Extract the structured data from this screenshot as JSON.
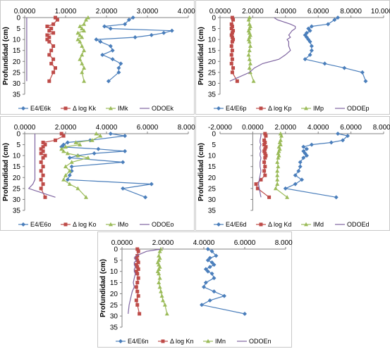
{
  "colors": {
    "E4E6": "#4a7ebb",
    "dlogK": "#be4b48",
    "IM": "#9bbb59",
    "ODOE": "#7e64a0"
  },
  "chart_data": [
    {
      "type": "line",
      "title": "",
      "xlabel": "",
      "ylabel": "Profundidad (cm)",
      "xlim": [
        0,
        4
      ],
      "xticks": [
        "0.0000",
        "1.0000",
        "2.0000",
        "3.0000",
        "4.0000"
      ],
      "ylim": [
        0,
        35
      ],
      "yticks": [
        "0",
        "5",
        "10",
        "15",
        "20",
        "25",
        "30",
        "35"
      ],
      "depth": [
        0,
        1,
        3,
        4,
        5,
        6,
        7,
        8,
        9,
        10,
        11,
        13,
        15,
        17,
        19,
        21,
        23,
        25,
        29
      ],
      "series": [
        {
          "name": "E4/E6k",
          "values": [
            2.65,
            2.55,
            2.45,
            1.95,
            2.1,
            3.6,
            3.4,
            3.1,
            2.7,
            1.75,
            1.85,
            2.1,
            2.15,
            1.9,
            2.15,
            2.35,
            2.3,
            2.3,
            2.05
          ]
        },
        {
          "name": "Δ log Kk",
          "values": [
            0.75,
            0.8,
            0.7,
            0.55,
            0.65,
            0.6,
            0.7,
            0.55,
            0.6,
            0.55,
            0.6,
            0.7,
            0.65,
            0.6,
            0.7,
            0.65,
            0.75,
            0.7,
            0.6
          ]
        },
        {
          "name": "IMk",
          "values": [
            1.55,
            1.5,
            1.45,
            1.35,
            1.4,
            1.45,
            1.3,
            1.35,
            1.4,
            1.3,
            1.35,
            1.4,
            1.45,
            1.4,
            1.35,
            1.4,
            1.45,
            1.4,
            1.45
          ]
        },
        {
          "name": "ODOEk",
          "values": [
            0.05,
            0.05,
            0.05,
            0.05,
            0.05,
            0.05,
            0.05,
            0.05,
            0.05,
            0.05,
            0.05,
            0.05,
            0.05,
            0.05,
            0.05,
            0.05,
            0.05,
            0.05,
            0.05
          ]
        }
      ]
    },
    {
      "type": "line",
      "title": "",
      "xlabel": "",
      "ylabel": "Profundidad (cm)",
      "xlim": [
        0,
        10
      ],
      "xticks": [
        "0.0000",
        "2.0000",
        "4.0000",
        "6.0000",
        "8.0000",
        "10.0000"
      ],
      "ylim": [
        0,
        35
      ],
      "yticks": [
        "0",
        "5",
        "10",
        "15",
        "20",
        "25",
        "30",
        "35"
      ],
      "depth": [
        0,
        1,
        3,
        4,
        5,
        6,
        7,
        8,
        9,
        10,
        11,
        13,
        15,
        17,
        19,
        21,
        23,
        25,
        29
      ],
      "series": [
        {
          "name": "E4/E6p",
          "values": [
            7.2,
            7.0,
            6.6,
            5.6,
            5.4,
            5.5,
            5.3,
            5.2,
            5.3,
            5.4,
            5.5,
            5.6,
            5.6,
            5.5,
            5.2,
            6.4,
            7.6,
            8.7,
            8.9
          ]
        },
        {
          "name": "Δ log Kp",
          "values": [
            0.75,
            0.8,
            0.7,
            0.75,
            0.7,
            0.8,
            0.75,
            0.7,
            0.75,
            0.8,
            0.75,
            0.7,
            0.75,
            0.7,
            0.75,
            0.7,
            0.8,
            0.75,
            1.05
          ]
        },
        {
          "name": "IMp",
          "values": [
            1.8,
            1.75,
            1.8,
            1.85,
            1.8,
            1.75,
            1.8,
            1.85,
            1.8,
            1.75,
            1.8,
            1.85,
            1.8,
            1.75,
            1.8,
            1.85,
            1.8,
            1.85,
            2.05
          ]
        },
        {
          "name": "ODOEp",
          "values": [
            3.3,
            3.5,
            4.3,
            4.6,
            4.6,
            4.4,
            4.3,
            4.2,
            4.3,
            4.1,
            4.2,
            4.2,
            4.3,
            4.0,
            3.6,
            2.6,
            2.1,
            1.8,
            0.6
          ]
        }
      ]
    },
    {
      "type": "line",
      "title": "",
      "xlabel": "",
      "ylabel": "Profundidad (cm)",
      "xlim": [
        0,
        8
      ],
      "xticks": [
        "0.0000",
        "2.0000",
        "4.0000",
        "6.0000",
        "8.0000"
      ],
      "ylim": [
        0,
        35
      ],
      "yticks": [
        "0",
        "5",
        "10",
        "15",
        "20",
        "25",
        "30",
        "35"
      ],
      "depth": [
        0,
        1,
        3,
        4,
        5,
        6,
        7,
        8,
        9,
        10,
        11,
        13,
        15,
        17,
        19,
        21,
        23,
        25,
        29
      ],
      "series": [
        {
          "name": "E4/E6o",
          "values": [
            4.2,
            4.9,
            3.2,
            2.1,
            1.9,
            1.8,
            3.6,
            4.9,
            3.4,
            2.6,
            2.2,
            4.8,
            2.3,
            2.3,
            2.2,
            2.1,
            6.2,
            4.8,
            5.9
          ]
        },
        {
          "name": "Δ log Ko",
          "values": [
            1.8,
            1.9,
            1.5,
            0.9,
            1.0,
            0.9,
            0.8,
            0.9,
            0.8,
            1.0,
            0.9,
            0.8,
            0.9,
            0.8,
            0.9,
            0.8,
            0.9,
            0.8,
            1.0
          ]
        },
        {
          "name": "IMo",
          "values": [
            3.5,
            3.7,
            3.3,
            2.5,
            2.7,
            2.0,
            1.8,
            1.9,
            2.1,
            2.6,
            3.1,
            2.3,
            2.0,
            2.2,
            2.0,
            1.9,
            2.2,
            2.6,
            3.0
          ]
        },
        {
          "name": "ODOEo",
          "values": [
            0.5,
            0.5,
            0.5,
            0.5,
            0.5,
            0.5,
            0.5,
            0.5,
            0.5,
            0.5,
            0.5,
            0.5,
            0.5,
            0.5,
            0.5,
            0.5,
            0.4,
            0.2,
            1.5
          ]
        }
      ]
    },
    {
      "type": "line",
      "title": "",
      "xlabel": "",
      "ylabel": "Profundidad (cm)",
      "xlim": [
        -2,
        8
      ],
      "xticks": [
        "-2.0000",
        "0.0000",
        "2.0000",
        "4.0000",
        "6.0000",
        "8.0000"
      ],
      "ylim": [
        0,
        35
      ],
      "yticks": [
        "0",
        "5",
        "10",
        "15",
        "20",
        "25",
        "30",
        "35"
      ],
      "depth": [
        0,
        1,
        3,
        4,
        5,
        6,
        7,
        8,
        9,
        10,
        11,
        13,
        15,
        17,
        19,
        21,
        23,
        25,
        29
      ],
      "series": [
        {
          "name": "E4/E6d",
          "values": [
            5.2,
            5.8,
            5.5,
            4.8,
            3.6,
            3.1,
            3.3,
            3.1,
            3.2,
            3.3,
            3.1,
            2.9,
            2.9,
            2.8,
            2.6,
            3.0,
            2.6,
            2.0,
            5.1
          ]
        },
        {
          "name": "Δ log Kd",
          "values": [
            0.75,
            0.8,
            0.7,
            0.75,
            0.7,
            0.8,
            0.75,
            0.7,
            0.75,
            0.8,
            0.75,
            0.7,
            0.75,
            0.7,
            0.75,
            0.5,
            0.2,
            0.3,
            1.0
          ]
        },
        {
          "name": "IMd",
          "values": [
            1.7,
            1.75,
            1.7,
            1.65,
            1.7,
            1.6,
            1.65,
            1.6,
            1.55,
            1.6,
            1.55,
            1.5,
            1.55,
            1.5,
            1.5,
            1.5,
            1.5,
            1.4,
            2.1
          ]
        },
        {
          "name": "ODOEd",
          "values": [
            0.5,
            0.5,
            0.45,
            0.45,
            0.5,
            0.45,
            0.45,
            0.5,
            0.45,
            0.45,
            0.5,
            0.45,
            0.45,
            0.5,
            0.45,
            0.4,
            0.35,
            0.4,
            0.5
          ]
        }
      ]
    },
    {
      "type": "line",
      "title": "",
      "xlabel": "",
      "ylabel": "Profundidad (cm)",
      "xlim": [
        0,
        8
      ],
      "xticks": [
        "0.0000",
        "2.0000",
        "4.0000",
        "6.0000",
        "8.0000"
      ],
      "ylim": [
        0,
        35
      ],
      "yticks": [
        "0",
        "5",
        "10",
        "15",
        "20",
        "25",
        "30",
        "35"
      ],
      "depth": [
        0,
        1,
        3,
        4,
        5,
        6,
        7,
        8,
        9,
        10,
        11,
        13,
        15,
        17,
        19,
        21,
        23,
        25,
        29
      ],
      "series": [
        {
          "name": "E4/E6n",
          "values": [
            4.2,
            4.4,
            4.6,
            4.3,
            4.2,
            4.4,
            4.5,
            4.3,
            4.1,
            4.2,
            4.4,
            4.5,
            4.1,
            4.0,
            4.5,
            5.0,
            4.3,
            3.9,
            6.0
          ]
        },
        {
          "name": "Δ log Kn",
          "values": [
            0.75,
            0.8,
            0.75,
            0.7,
            0.75,
            0.8,
            0.7,
            0.75,
            0.8,
            0.7,
            0.75,
            0.8,
            0.75,
            0.7,
            0.75,
            0.8,
            0.7,
            0.75,
            0.85
          ]
        },
        {
          "name": "IMn",
          "values": [
            1.9,
            1.85,
            1.8,
            1.85,
            1.8,
            1.75,
            1.8,
            1.85,
            1.8,
            1.75,
            1.8,
            1.85,
            1.8,
            1.85,
            1.9,
            1.95,
            2.0,
            2.1,
            2.2
          ]
        },
        {
          "name": "ODOEn",
          "values": [
            1.9,
            1.2,
            0.7,
            0.6,
            0.7,
            0.6,
            0.6,
            0.65,
            0.6,
            0.6,
            0.65,
            0.6,
            0.55,
            0.6,
            0.5,
            0.45,
            0.4,
            0.35,
            0.3
          ]
        }
      ]
    }
  ]
}
